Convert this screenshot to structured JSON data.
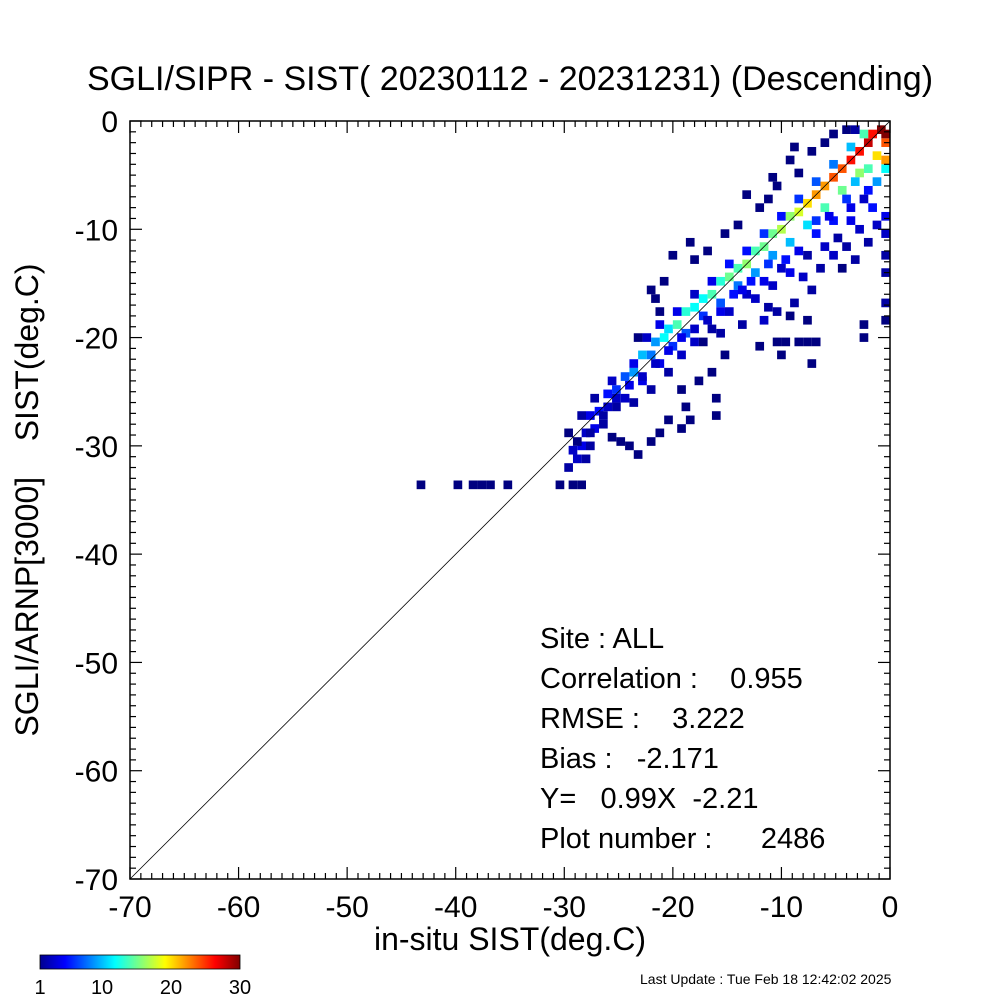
{
  "chart_data": {
    "type": "heatmap",
    "title": "SGLI/SIPR - SIST( 20230112 - 20231231) (Descending)",
    "xlabel": "in-situ SIST(deg.C)",
    "ylabel": "SGLI/ARNP[3000]    SIST(deg.C)",
    "xlim": [
      -70,
      0
    ],
    "ylim": [
      -70,
      0
    ],
    "x_ticks": [
      "-70",
      "-60",
      "-50",
      "-40",
      "-30",
      "-20",
      "-10",
      "0"
    ],
    "y_ticks": [
      "0",
      "-10",
      "-20",
      "-30",
      "-40",
      "-50",
      "-60",
      "-70"
    ],
    "reference_line": "y = x",
    "colorscale": {
      "name": "jet",
      "ticks": [
        "1",
        "10",
        "20",
        "30"
      ],
      "min": 1,
      "max": 30
    },
    "cells": [
      [
        -43.2,
        -33.6,
        1
      ],
      [
        -39.8,
        -33.6,
        1
      ],
      [
        -38.4,
        -33.6,
        1
      ],
      [
        -37.6,
        -33.6,
        1
      ],
      [
        -36.8,
        -33.6,
        1
      ],
      [
        -35.2,
        -33.6,
        1
      ],
      [
        -30.4,
        -33.6,
        1
      ],
      [
        -29.2,
        -33.6,
        1
      ],
      [
        -28.4,
        -33.6,
        1
      ],
      [
        -29.6,
        -32.0,
        2
      ],
      [
        -28.8,
        -31.2,
        3
      ],
      [
        -28.0,
        -31.2,
        2
      ],
      [
        -29.2,
        -30.4,
        3
      ],
      [
        -28.4,
        -30.0,
        4
      ],
      [
        -27.6,
        -30.0,
        2
      ],
      [
        -29.6,
        -28.8,
        1
      ],
      [
        -28.0,
        -28.8,
        3
      ],
      [
        -27.2,
        -28.4,
        4
      ],
      [
        -26.4,
        -28.0,
        2
      ],
      [
        -28.4,
        -27.2,
        2
      ],
      [
        -27.6,
        -27.2,
        4
      ],
      [
        -26.8,
        -26.8,
        5
      ],
      [
        -26.0,
        -26.4,
        3
      ],
      [
        -25.2,
        -26.4,
        2
      ],
      [
        -27.2,
        -25.6,
        2
      ],
      [
        -26.0,
        -25.2,
        5
      ],
      [
        -25.2,
        -24.8,
        6
      ],
      [
        -24.4,
        -25.6,
        3
      ],
      [
        -23.6,
        -26.0,
        2
      ],
      [
        -25.6,
        -24.0,
        3
      ],
      [
        -24.4,
        -23.6,
        7
      ],
      [
        -23.6,
        -23.2,
        9
      ],
      [
        -22.8,
        -24.0,
        4
      ],
      [
        -22.0,
        -24.8,
        2
      ],
      [
        -23.6,
        -22.4,
        4
      ],
      [
        -22.8,
        -21.6,
        10
      ],
      [
        -22.0,
        -21.6,
        8
      ],
      [
        -21.2,
        -22.4,
        4
      ],
      [
        -20.4,
        -23.2,
        2
      ],
      [
        -22.4,
        -20.0,
        3
      ],
      [
        -21.6,
        -20.4,
        9
      ],
      [
        -20.8,
        -20.0,
        12
      ],
      [
        -20.0,
        -20.8,
        6
      ],
      [
        -19.2,
        -21.6,
        3
      ],
      [
        -21.2,
        -18.8,
        4
      ],
      [
        -20.4,
        -19.2,
        11
      ],
      [
        -19.6,
        -18.8,
        14
      ],
      [
        -18.8,
        -19.6,
        7
      ],
      [
        -18.0,
        -20.4,
        3
      ],
      [
        -19.6,
        -17.6,
        4
      ],
      [
        -18.8,
        -17.6,
        13
      ],
      [
        -18.0,
        -17.2,
        12
      ],
      [
        -17.2,
        -18.0,
        6
      ],
      [
        -16.4,
        -19.2,
        2
      ],
      [
        -18.0,
        -16.0,
        3
      ],
      [
        -17.2,
        -16.4,
        12
      ],
      [
        -16.4,
        -16.0,
        14
      ],
      [
        -15.6,
        -16.8,
        7
      ],
      [
        -14.8,
        -17.6,
        3
      ],
      [
        -16.4,
        -14.8,
        4
      ],
      [
        -15.6,
        -14.8,
        13
      ],
      [
        -14.8,
        -14.4,
        15
      ],
      [
        -14.0,
        -15.2,
        8
      ],
      [
        -13.2,
        -16.0,
        3
      ],
      [
        -14.8,
        -13.2,
        5
      ],
      [
        -14.0,
        -13.6,
        14
      ],
      [
        -13.2,
        -13.2,
        16
      ],
      [
        -12.4,
        -14.0,
        9
      ],
      [
        -11.6,
        -14.8,
        4
      ],
      [
        -13.2,
        -12.0,
        5
      ],
      [
        -12.4,
        -12.0,
        14
      ],
      [
        -11.6,
        -11.6,
        15
      ],
      [
        -10.8,
        -12.4,
        9
      ],
      [
        -10.0,
        -13.6,
        3
      ],
      [
        -11.6,
        -10.4,
        6
      ],
      [
        -10.8,
        -10.4,
        15
      ],
      [
        -10.0,
        -10.0,
        17
      ],
      [
        -9.2,
        -11.2,
        10
      ],
      [
        -8.4,
        -12.0,
        4
      ],
      [
        -10.0,
        -8.8,
        5
      ],
      [
        -9.2,
        -8.8,
        16
      ],
      [
        -8.4,
        -8.4,
        18
      ],
      [
        -7.6,
        -9.6,
        11
      ],
      [
        -6.8,
        -10.4,
        5
      ],
      [
        -8.4,
        -7.2,
        6
      ],
      [
        -7.6,
        -7.6,
        20
      ],
      [
        -6.8,
        -6.8,
        22
      ],
      [
        -6.0,
        -8.0,
        14
      ],
      [
        -5.2,
        -9.2,
        5
      ],
      [
        -6.8,
        -5.6,
        7
      ],
      [
        -6.0,
        -6.0,
        22
      ],
      [
        -5.2,
        -5.2,
        24
      ],
      [
        -4.4,
        -6.4,
        15
      ],
      [
        -3.6,
        -8.0,
        4
      ],
      [
        -5.2,
        -4.0,
        8
      ],
      [
        -4.4,
        -4.4,
        24
      ],
      [
        -3.6,
        -3.6,
        26
      ],
      [
        -2.8,
        -4.8,
        16
      ],
      [
        -2.0,
        -6.4,
        5
      ],
      [
        -3.6,
        -2.4,
        10
      ],
      [
        -2.8,
        -2.8,
        26
      ],
      [
        -2.0,
        -2.0,
        28
      ],
      [
        -1.2,
        -3.2,
        20
      ],
      [
        -0.4,
        -4.4,
        12
      ],
      [
        -2.4,
        -1.2,
        14
      ],
      [
        -1.6,
        -1.2,
        26
      ],
      [
        -0.8,
        -0.8,
        30
      ],
      [
        -0.4,
        -2.0,
        24
      ],
      [
        -0.4,
        -1.2,
        30
      ],
      [
        -0.4,
        -3.6,
        22
      ],
      [
        -9.2,
        -14.0,
        4
      ],
      [
        -8.0,
        -14.4,
        3
      ],
      [
        -6.4,
        -13.6,
        2
      ],
      [
        -5.2,
        -12.4,
        3
      ],
      [
        -4.0,
        -11.6,
        2
      ],
      [
        -2.8,
        -10.0,
        3
      ],
      [
        -0.4,
        -8.8,
        4
      ],
      [
        -0.4,
        -10.4,
        3
      ],
      [
        -0.4,
        -12.4,
        2
      ],
      [
        -0.4,
        -14.0,
        2
      ],
      [
        -0.4,
        -16.8,
        2
      ],
      [
        -0.4,
        -18.4,
        1
      ],
      [
        -1.2,
        -9.6,
        3
      ],
      [
        -2.0,
        -11.2,
        2
      ],
      [
        -3.2,
        -12.8,
        2
      ],
      [
        -4.4,
        -13.6,
        1
      ],
      [
        -7.2,
        -15.6,
        2
      ],
      [
        -8.8,
        -16.8,
        2
      ],
      [
        -10.4,
        -17.6,
        2
      ],
      [
        -11.6,
        -18.4,
        3
      ],
      [
        -13.6,
        -18.8,
        2
      ],
      [
        -15.6,
        -19.6,
        2
      ],
      [
        -17.2,
        -20.4,
        1
      ],
      [
        -12.0,
        -20.8,
        1
      ],
      [
        -10.4,
        -20.4,
        1
      ],
      [
        -9.6,
        -20.4,
        1
      ],
      [
        -8.4,
        -20.4,
        1
      ],
      [
        -7.6,
        -20.4,
        1
      ],
      [
        -6.8,
        -20.4,
        1
      ],
      [
        -10.0,
        -21.6,
        1
      ],
      [
        -7.2,
        -22.4,
        1
      ],
      [
        -15.2,
        -21.6,
        1
      ],
      [
        -16.4,
        -23.2,
        1
      ],
      [
        -17.6,
        -24.0,
        1
      ],
      [
        -19.2,
        -24.8,
        1
      ],
      [
        -18.8,
        -26.4,
        1
      ],
      [
        -16.0,
        -25.6,
        1
      ],
      [
        -16.0,
        -27.2,
        1
      ],
      [
        -18.4,
        -27.6,
        1
      ],
      [
        -19.2,
        -28.4,
        1
      ],
      [
        -20.4,
        -27.6,
        1
      ],
      [
        -21.2,
        -28.8,
        1
      ],
      [
        -22.0,
        -29.6,
        1
      ],
      [
        -23.2,
        -30.8,
        1
      ],
      [
        -24.0,
        -30.0,
        1
      ],
      [
        -24.8,
        -29.6,
        1
      ],
      [
        -25.6,
        -29.2,
        1
      ],
      [
        -20.0,
        -12.4,
        1
      ],
      [
        -18.4,
        -11.2,
        1
      ],
      [
        -16.8,
        -12.0,
        1
      ],
      [
        -15.2,
        -10.4,
        1
      ],
      [
        -14.0,
        -9.6,
        1
      ],
      [
        -13.2,
        -6.8,
        1
      ],
      [
        -12.0,
        -8.0,
        1
      ],
      [
        -10.8,
        -5.2,
        1
      ],
      [
        -9.2,
        -3.6,
        1
      ],
      [
        -8.4,
        -4.8,
        1
      ],
      [
        -7.2,
        -2.8,
        1
      ],
      [
        -6.0,
        -2.0,
        1
      ],
      [
        -5.2,
        -1.2,
        1
      ],
      [
        -4.0,
        -0.8,
        1
      ],
      [
        -3.2,
        -0.8,
        2
      ],
      [
        -8.8,
        -2.4,
        1
      ],
      [
        -10.4,
        -6.0,
        1
      ],
      [
        -11.2,
        -7.2,
        1
      ],
      [
        -18.0,
        -12.8,
        1
      ],
      [
        -20.8,
        -14.8,
        1
      ],
      [
        -21.6,
        -16.4,
        1
      ],
      [
        -21.2,
        -17.6,
        1
      ],
      [
        -23.2,
        -20.0,
        1
      ],
      [
        -22.0,
        -15.6,
        1
      ],
      [
        -2.4,
        -7.2,
        3
      ],
      [
        -1.6,
        -8.0,
        5
      ],
      [
        -3.6,
        -9.2,
        4
      ],
      [
        -4.8,
        -10.8,
        2
      ],
      [
        -6.0,
        -11.6,
        3
      ],
      [
        -7.6,
        -12.4,
        2
      ],
      [
        -1.2,
        -5.6,
        9
      ],
      [
        -2.0,
        -4.4,
        14
      ],
      [
        -3.2,
        -5.6,
        10
      ],
      [
        -4.0,
        -7.2,
        6
      ],
      [
        -5.6,
        -8.8,
        4
      ],
      [
        -6.8,
        -9.2,
        6
      ],
      [
        -2.4,
        -20.0,
        1
      ],
      [
        -2.4,
        -18.8,
        1
      ],
      [
        -7.6,
        -18.4,
        1
      ],
      [
        -9.2,
        -18.0,
        1
      ],
      [
        -11.2,
        -17.2,
        2
      ],
      [
        -12.4,
        -16.4,
        3
      ],
      [
        -13.6,
        -15.6,
        4
      ],
      [
        -10.8,
        -15.2,
        3
      ],
      [
        -9.6,
        -12.8,
        5
      ],
      [
        -11.2,
        -13.2,
        6
      ],
      [
        -12.8,
        -14.8,
        5
      ],
      [
        -14.4,
        -16.0,
        5
      ],
      [
        -15.6,
        -17.6,
        4
      ],
      [
        -16.8,
        -18.4,
        3
      ],
      [
        -18.0,
        -19.2,
        3
      ],
      [
        -19.2,
        -20.0,
        4
      ],
      [
        -20.4,
        -21.2,
        4
      ],
      [
        -21.6,
        -22.4,
        3
      ],
      [
        -22.8,
        -23.6,
        3
      ],
      [
        -24.0,
        -24.4,
        4
      ],
      [
        -25.2,
        -25.6,
        3
      ],
      [
        -26.4,
        -27.2,
        2
      ],
      [
        -27.6,
        -28.8,
        2
      ],
      [
        -28.8,
        -29.6,
        1
      ]
    ],
    "stats": {
      "site": "Site : ALL",
      "correlation": "Correlation :    0.955",
      "rmse": "RMSE :    3.222",
      "bias": "Bias :   -2.171",
      "fit": "Y=   0.99X  -2.21",
      "plot_number": "Plot number :      2486"
    }
  },
  "footer": {
    "last_update": "Last Update : Tue Feb 18 12:42:02 2025"
  }
}
